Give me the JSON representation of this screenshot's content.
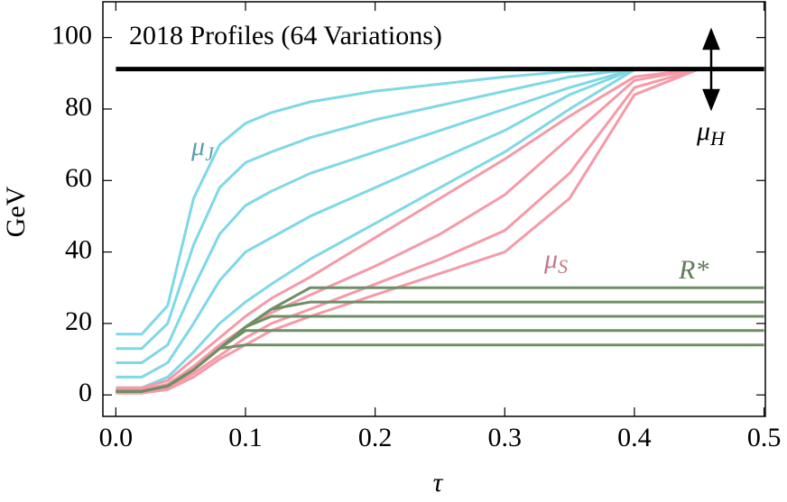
{
  "chart_data": {
    "type": "line",
    "title": "2018 Profiles (64 Variations)",
    "x_label": "τ",
    "y_label": "GeV",
    "x": [
      0,
      0.02,
      0.04,
      0.06,
      0.08,
      0.1,
      0.12,
      0.15,
      0.2,
      0.25,
      0.3,
      0.35,
      0.4,
      0.45,
      0.5
    ],
    "series": [
      {
        "color": "#7fd8e6",
        "values": [
          17,
          17,
          25,
          55,
          70,
          76,
          79,
          82,
          85,
          87,
          89,
          90.5,
          91.2,
          91.2,
          91.2
        ]
      },
      {
        "color": "#7fd8e6",
        "values": [
          13,
          13,
          20,
          42,
          58,
          65,
          68,
          72,
          77,
          81,
          85,
          89,
          91.2,
          91.2,
          91.2
        ]
      },
      {
        "color": "#7fd8e6",
        "values": [
          9,
          9,
          14,
          30,
          45,
          53,
          57,
          62,
          68,
          74,
          80,
          86,
          91.2,
          91.2,
          91.2
        ]
      },
      {
        "color": "#7fd8e6",
        "values": [
          5,
          5,
          9,
          20,
          32,
          40,
          44,
          50,
          58,
          66,
          74,
          84,
          91.2,
          91.2,
          91.2
        ]
      },
      {
        "color": "#7fd8e6",
        "values": [
          2,
          2,
          5,
          12,
          20,
          26,
          31,
          38,
          48,
          58,
          68,
          80,
          91,
          91.2,
          91.2
        ]
      },
      {
        "color": "#f59aa8",
        "values": [
          2,
          2,
          4,
          10,
          16,
          22,
          27,
          33,
          44,
          55,
          66,
          78,
          89,
          91.2,
          91.2
        ]
      },
      {
        "color": "#f59aa8",
        "values": [
          1.5,
          1.5,
          3,
          8,
          14,
          19,
          23,
          28,
          36,
          45,
          56,
          72,
          88,
          91.2,
          91.2
        ]
      },
      {
        "color": "#f59aa8",
        "values": [
          1,
          1,
          2,
          6,
          11,
          16,
          20,
          24,
          31,
          38,
          46,
          62,
          86,
          91.2,
          91.2
        ]
      },
      {
        "color": "#f59aa8",
        "values": [
          0.5,
          0.5,
          1.5,
          5,
          10,
          14,
          18,
          22,
          28,
          34,
          40,
          55,
          84,
          91.2,
          91.2
        ]
      },
      {
        "color": "#6e8f65",
        "values": [
          1,
          1,
          2.5,
          7,
          13,
          19,
          24,
          30,
          30,
          30,
          30,
          30,
          30,
          30,
          30
        ]
      },
      {
        "color": "#6e8f65",
        "values": [
          1,
          1,
          2.5,
          7,
          13,
          19,
          24,
          26,
          26,
          26,
          26,
          26,
          26,
          26,
          26
        ]
      },
      {
        "color": "#6e8f65",
        "values": [
          1,
          1,
          2.5,
          7,
          13,
          19,
          22,
          22,
          22,
          22,
          22,
          22,
          22,
          22,
          22
        ]
      },
      {
        "color": "#6e8f65",
        "values": [
          1,
          1,
          2.5,
          7,
          13,
          18,
          18,
          18,
          18,
          18,
          18,
          18,
          18,
          18,
          18
        ]
      },
      {
        "color": "#6e8f65",
        "values": [
          1,
          1,
          2.5,
          7,
          13,
          14,
          14,
          14,
          14,
          14,
          14,
          14,
          14,
          14,
          14
        ]
      },
      {
        "color": "#000000",
        "values": [
          91.2,
          91.2,
          91.2,
          91.2,
          91.2,
          91.2,
          91.2,
          91.2,
          91.2,
          91.2,
          91.2,
          91.2,
          91.2,
          91.2,
          91.2
        ]
      }
    ],
    "annotations": [
      {
        "text": "μ",
        "sub": "J",
        "color": "#5aa0aa"
      },
      {
        "text": "μ",
        "sub": "S",
        "color": "#c27a86"
      },
      {
        "text": "R*",
        "color": "#5f7c58"
      },
      {
        "text": "μ",
        "sub": "H",
        "color": "#000000"
      }
    ],
    "xlim": [
      -0.01,
      0.501
    ],
    "ylim": [
      -6,
      110
    ],
    "xticks": [
      {
        "value": 0,
        "label": "0.0"
      },
      0.1,
      0.2,
      0.3,
      0.4,
      0.5
    ],
    "yticks": [
      0,
      20,
      40,
      60,
      80,
      100
    ]
  }
}
